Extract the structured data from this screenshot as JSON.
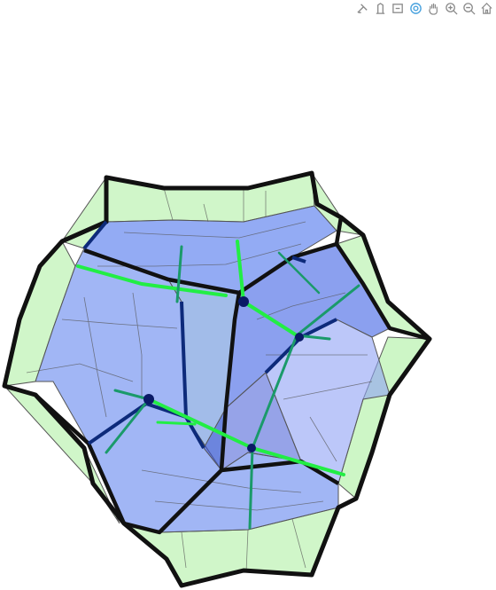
{
  "toolbar": {
    "buttons": [
      {
        "name": "zoom-icon",
        "active": false
      },
      {
        "name": "pan-icon",
        "active": false
      },
      {
        "name": "zoom-in-icon",
        "active": false
      },
      {
        "name": "zoom-out-icon",
        "active": false
      },
      {
        "name": "orbit-icon",
        "active": true
      },
      {
        "name": "turntable-icon",
        "active": false
      },
      {
        "name": "reset-camera-icon",
        "active": false
      }
    ]
  },
  "scene": {
    "object": "dodecahedral-lattice",
    "colors": {
      "outer_face": "#c8f5c0",
      "inner_face": "#6f8ff0",
      "inner_face_dark": "#3f57d6",
      "edge": "#111111",
      "grid": "#555555",
      "path": "#22ee44",
      "path_dark": "#1a9a6a",
      "vertex": "#0a1a66",
      "toolbar_icon": "#8a8a8a",
      "toolbar_active": "#4aa3df"
    }
  }
}
